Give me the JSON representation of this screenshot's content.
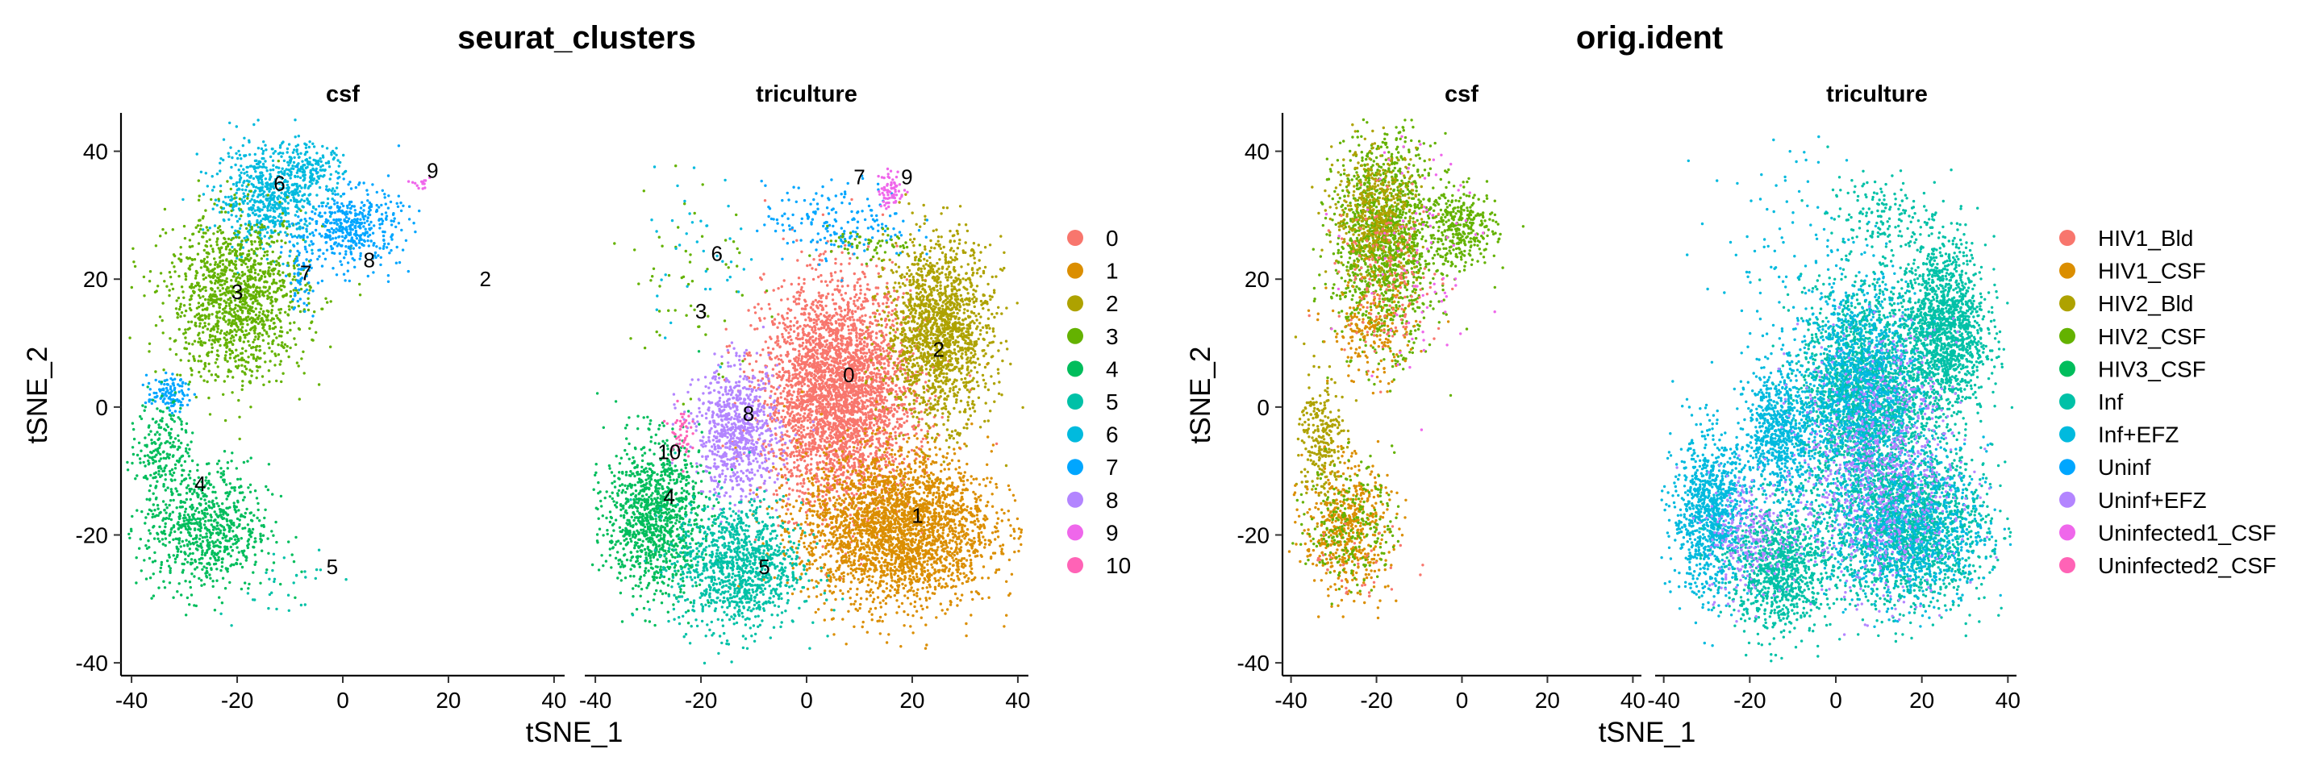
{
  "chart_data": [
    {
      "type": "scatter",
      "title": "seurat_clusters",
      "facets": [
        "csf",
        "triculture"
      ],
      "xlabel": "tSNE_1",
      "ylabel": "tSNE_2",
      "xlim": [
        -42,
        42
      ],
      "ylim": [
        -42,
        46
      ],
      "xticks": [
        -40,
        -20,
        0,
        20,
        40
      ],
      "yticks": [
        -40,
        -20,
        0,
        20,
        40
      ],
      "grid": false,
      "legend_position": "right",
      "legend": [
        {
          "label": "0",
          "color": "#F8766D"
        },
        {
          "label": "1",
          "color": "#DB8E00"
        },
        {
          "label": "2",
          "color": "#AEA200"
        },
        {
          "label": "3",
          "color": "#64B200"
        },
        {
          "label": "4",
          "color": "#00BD5C"
        },
        {
          "label": "5",
          "color": "#00C1A7"
        },
        {
          "label": "6",
          "color": "#00BADE"
        },
        {
          "label": "7",
          "color": "#00A6FF"
        },
        {
          "label": "8",
          "color": "#B385FF"
        },
        {
          "label": "9",
          "color": "#EF67EB"
        },
        {
          "label": "10",
          "color": "#FF63B6"
        }
      ],
      "cluster_labels": [
        {
          "facet": 0,
          "label": "6",
          "x": -12,
          "y": 35
        },
        {
          "facet": 0,
          "label": "3",
          "x": -20,
          "y": 18
        },
        {
          "facet": 0,
          "label": "7",
          "x": -7,
          "y": 21
        },
        {
          "facet": 0,
          "label": "8",
          "x": 5,
          "y": 23
        },
        {
          "facet": 0,
          "label": "9",
          "x": 17,
          "y": 37
        },
        {
          "facet": 0,
          "label": "2",
          "x": 27,
          "y": 20
        },
        {
          "facet": 0,
          "label": "4",
          "x": -27,
          "y": -12
        },
        {
          "facet": 0,
          "label": "5",
          "x": -2,
          "y": -25
        },
        {
          "facet": 1,
          "label": "7",
          "x": 10,
          "y": 36
        },
        {
          "facet": 1,
          "label": "9",
          "x": 19,
          "y": 36
        },
        {
          "facet": 1,
          "label": "6",
          "x": -17,
          "y": 24
        },
        {
          "facet": 1,
          "label": "3",
          "x": -20,
          "y": 15
        },
        {
          "facet": 1,
          "label": "2",
          "x": 25,
          "y": 9
        },
        {
          "facet": 1,
          "label": "0",
          "x": 8,
          "y": 5
        },
        {
          "facet": 1,
          "label": "8",
          "x": -11,
          "y": -1
        },
        {
          "facet": 1,
          "label": "10",
          "x": -26,
          "y": -7
        },
        {
          "facet": 1,
          "label": "4",
          "x": -26,
          "y": -14
        },
        {
          "facet": 1,
          "label": "1",
          "x": 21,
          "y": -17
        },
        {
          "facet": 1,
          "label": "5",
          "x": -8,
          "y": -25
        }
      ],
      "clusters": [
        {
          "facet": 0,
          "color": "#00BADE",
          "x": -14,
          "y": 33,
          "sx": 5,
          "sy": 4,
          "n": 650
        },
        {
          "facet": 0,
          "color": "#00BADE",
          "x": -6,
          "y": 37,
          "sx": 3,
          "sy": 2,
          "n": 140
        },
        {
          "facet": 0,
          "color": "#64B200",
          "x": -20,
          "y": 17,
          "sx": 6.5,
          "sy": 6.5,
          "n": 1300
        },
        {
          "facet": 0,
          "color": "#00A6FF",
          "x": 2,
          "y": 28,
          "sx": 4.5,
          "sy": 3,
          "n": 420
        },
        {
          "facet": 0,
          "color": "#00A6FF",
          "x": -8,
          "y": 21,
          "sx": 1.5,
          "sy": 3,
          "n": 70
        },
        {
          "facet": 0,
          "color": "#00A6FF",
          "x": -33,
          "y": 2,
          "sx": 2,
          "sy": 1.3,
          "n": 110
        },
        {
          "facet": 0,
          "color": "#EF67EB",
          "x": 14,
          "y": 35,
          "sx": 1.2,
          "sy": 0.4,
          "n": 14
        },
        {
          "facet": 0,
          "color": "#00BD5C",
          "x": -34,
          "y": -6,
          "sx": 2.5,
          "sy": 4,
          "n": 200
        },
        {
          "facet": 0,
          "color": "#00BD5C",
          "x": -26,
          "y": -19,
          "sx": 6,
          "sy": 5,
          "n": 760
        },
        {
          "facet": 0,
          "color": "#00C1A7",
          "x": -12,
          "y": -27,
          "sx": 6,
          "sy": 3,
          "n": 30
        },
        {
          "facet": 1,
          "color": "#F8766D",
          "x": 6,
          "y": 2,
          "sx": 7,
          "sy": 8.5,
          "n": 3400
        },
        {
          "facet": 1,
          "color": "#DB8E00",
          "x": 17,
          "y": -19,
          "sx": 9,
          "sy": 6,
          "n": 2800
        },
        {
          "facet": 1,
          "color": "#AEA200",
          "x": 25,
          "y": 12,
          "sx": 5,
          "sy": 7,
          "n": 1600
        },
        {
          "facet": 1,
          "color": "#B385FF",
          "x": -13,
          "y": -4,
          "sx": 4,
          "sy": 5,
          "n": 800
        },
        {
          "facet": 1,
          "color": "#00BD5C",
          "x": -29,
          "y": -17,
          "sx": 4.5,
          "sy": 6,
          "n": 1100
        },
        {
          "facet": 1,
          "color": "#00C1A7",
          "x": -13,
          "y": -25,
          "sx": 6,
          "sy": 5,
          "n": 1100
        },
        {
          "facet": 1,
          "color": "#00A6FF",
          "x": 6,
          "y": 29,
          "sx": 7,
          "sy": 3,
          "n": 180
        },
        {
          "facet": 1,
          "color": "#EF67EB",
          "x": 16,
          "y": 34,
          "sx": 1.2,
          "sy": 1.5,
          "n": 70
        },
        {
          "facet": 1,
          "color": "#FF63B6",
          "x": -24,
          "y": -4,
          "sx": 1,
          "sy": 2,
          "n": 50
        },
        {
          "facet": 1,
          "color": "#64B200",
          "x": -22,
          "y": 20,
          "sx": 6,
          "sy": 10,
          "n": 60
        },
        {
          "facet": 1,
          "color": "#00BADE",
          "x": -20,
          "y": 25,
          "sx": 6,
          "sy": 6,
          "n": 40
        },
        {
          "facet": 1,
          "color": "#64B200",
          "x": 12,
          "y": 25,
          "sx": 4,
          "sy": 1.5,
          "n": 60
        }
      ]
    },
    {
      "type": "scatter",
      "title": "orig.ident",
      "facets": [
        "csf",
        "triculture"
      ],
      "xlabel": "tSNE_1",
      "ylabel": "tSNE_2",
      "xlim": [
        -42,
        42
      ],
      "ylim": [
        -42,
        46
      ],
      "xticks": [
        -40,
        -20,
        0,
        20,
        40
      ],
      "yticks": [
        -40,
        -20,
        0,
        20,
        40
      ],
      "grid": false,
      "legend_position": "right",
      "legend": [
        {
          "label": "HIV1_Bld",
          "color": "#F8766D"
        },
        {
          "label": "HIV1_CSF",
          "color": "#DB8E00"
        },
        {
          "label": "HIV2_Bld",
          "color": "#AEA200"
        },
        {
          "label": "HIV2_CSF",
          "color": "#64B200"
        },
        {
          "label": "HIV3_CSF",
          "color": "#00BD5C"
        },
        {
          "label": "Inf",
          "color": "#00C1A7"
        },
        {
          "label": "Inf+EFZ",
          "color": "#00BADE"
        },
        {
          "label": "Uninf",
          "color": "#00A6FF"
        },
        {
          "label": "Uninf+EFZ",
          "color": "#B385FF"
        },
        {
          "label": "Uninfected1_CSF",
          "color": "#EF67EB"
        },
        {
          "label": "Uninfected2_CSF",
          "color": "#FF63B6"
        }
      ],
      "cluster_labels": [],
      "clusters": [
        {
          "facet": 0,
          "color": "#64B200",
          "x": -18,
          "y": 26,
          "sx": 6,
          "sy": 8,
          "n": 1400
        },
        {
          "facet": 0,
          "color": "#AEA200",
          "x": -20,
          "y": 30,
          "sx": 5,
          "sy": 5,
          "n": 500
        },
        {
          "facet": 0,
          "color": "#DB8E00",
          "x": -21,
          "y": 12,
          "sx": 5,
          "sy": 4,
          "n": 200
        },
        {
          "facet": 0,
          "color": "#64B200",
          "x": 0,
          "y": 28,
          "sx": 4,
          "sy": 3,
          "n": 320
        },
        {
          "facet": 0,
          "color": "#F8766D",
          "x": -17,
          "y": 20,
          "sx": 6,
          "sy": 6,
          "n": 160
        },
        {
          "facet": 0,
          "color": "#EF67EB",
          "x": -10,
          "y": 25,
          "sx": 8,
          "sy": 10,
          "n": 80
        },
        {
          "facet": 0,
          "color": "#AEA200",
          "x": -33,
          "y": -5,
          "sx": 2.5,
          "sy": 5,
          "n": 260
        },
        {
          "facet": 0,
          "color": "#DB8E00",
          "x": -27,
          "y": -19,
          "sx": 5,
          "sy": 5,
          "n": 520
        },
        {
          "facet": 0,
          "color": "#64B200",
          "x": -26,
          "y": -18,
          "sx": 5,
          "sy": 5,
          "n": 240
        },
        {
          "facet": 0,
          "color": "#F8766D",
          "x": -22,
          "y": -25,
          "sx": 7,
          "sy": 3,
          "n": 30
        },
        {
          "facet": 1,
          "color": "#00C1A7",
          "x": 6,
          "y": 2,
          "sx": 7,
          "sy": 8.5,
          "n": 1900
        },
        {
          "facet": 1,
          "color": "#00BADE",
          "x": 6,
          "y": 2,
          "sx": 7,
          "sy": 8.5,
          "n": 1300
        },
        {
          "facet": 1,
          "color": "#00C1A7",
          "x": 17,
          "y": -19,
          "sx": 9,
          "sy": 6,
          "n": 1700
        },
        {
          "facet": 1,
          "color": "#00BADE",
          "x": 17,
          "y": -19,
          "sx": 9,
          "sy": 6,
          "n": 900
        },
        {
          "facet": 1,
          "color": "#00C1A7",
          "x": 25,
          "y": 12,
          "sx": 5,
          "sy": 7,
          "n": 1500
        },
        {
          "facet": 1,
          "color": "#00BADE",
          "x": -13,
          "y": -4,
          "sx": 4,
          "sy": 5,
          "n": 700
        },
        {
          "facet": 1,
          "color": "#00BADE",
          "x": -29,
          "y": -17,
          "sx": 4.5,
          "sy": 6,
          "n": 1000
        },
        {
          "facet": 1,
          "color": "#00C1A7",
          "x": -13,
          "y": -25,
          "sx": 6,
          "sy": 5,
          "n": 1000
        },
        {
          "facet": 1,
          "color": "#B385FF",
          "x": 10,
          "y": -10,
          "sx": 9,
          "sy": 10,
          "n": 900
        },
        {
          "facet": 1,
          "color": "#B385FF",
          "x": -20,
          "y": -20,
          "sx": 5,
          "sy": 5,
          "n": 250
        },
        {
          "facet": 1,
          "color": "#00BADE",
          "x": -10,
          "y": 20,
          "sx": 10,
          "sy": 12,
          "n": 140
        },
        {
          "facet": 1,
          "color": "#00C1A7",
          "x": 10,
          "y": 30,
          "sx": 6,
          "sy": 3,
          "n": 150
        }
      ]
    }
  ]
}
